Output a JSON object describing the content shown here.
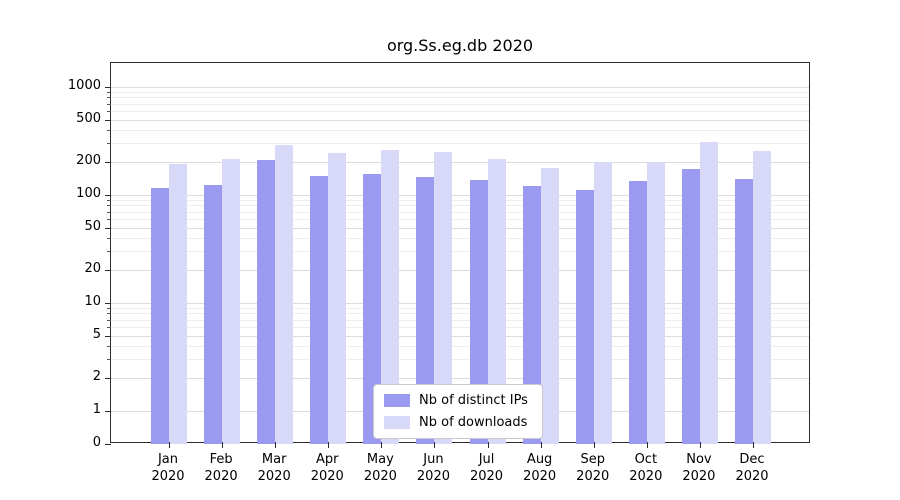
{
  "title": "org.Ss.eg.db 2020",
  "chart_data": {
    "type": "bar",
    "title": "org.Ss.eg.db 2020",
    "categories": [
      "Jan 2020",
      "Feb 2020",
      "Mar 2020",
      "Apr 2020",
      "May 2020",
      "Jun 2020",
      "Jul 2020",
      "Aug 2020",
      "Sep 2020",
      "Oct 2020",
      "Nov 2020",
      "Dec 2020"
    ],
    "series": [
      {
        "name": "Nb of distinct IPs",
        "color": "#9a9af0",
        "values": [
          115,
          125,
          210,
          150,
          155,
          148,
          138,
          122,
          112,
          136,
          175,
          142
        ]
      },
      {
        "name": "Nb of downloads",
        "color": "#d8d8f9",
        "values": [
          195,
          215,
          290,
          245,
          260,
          250,
          215,
          178,
          200,
          200,
          310,
          255
        ]
      }
    ],
    "yscale": "symlog",
    "yticks": [
      0,
      1,
      2,
      5,
      10,
      20,
      50,
      100,
      200,
      500,
      1000
    ],
    "ylim": [
      0,
      1700
    ],
    "xlabel": "",
    "ylabel": "",
    "grid": true,
    "legend_position": "lower center"
  }
}
